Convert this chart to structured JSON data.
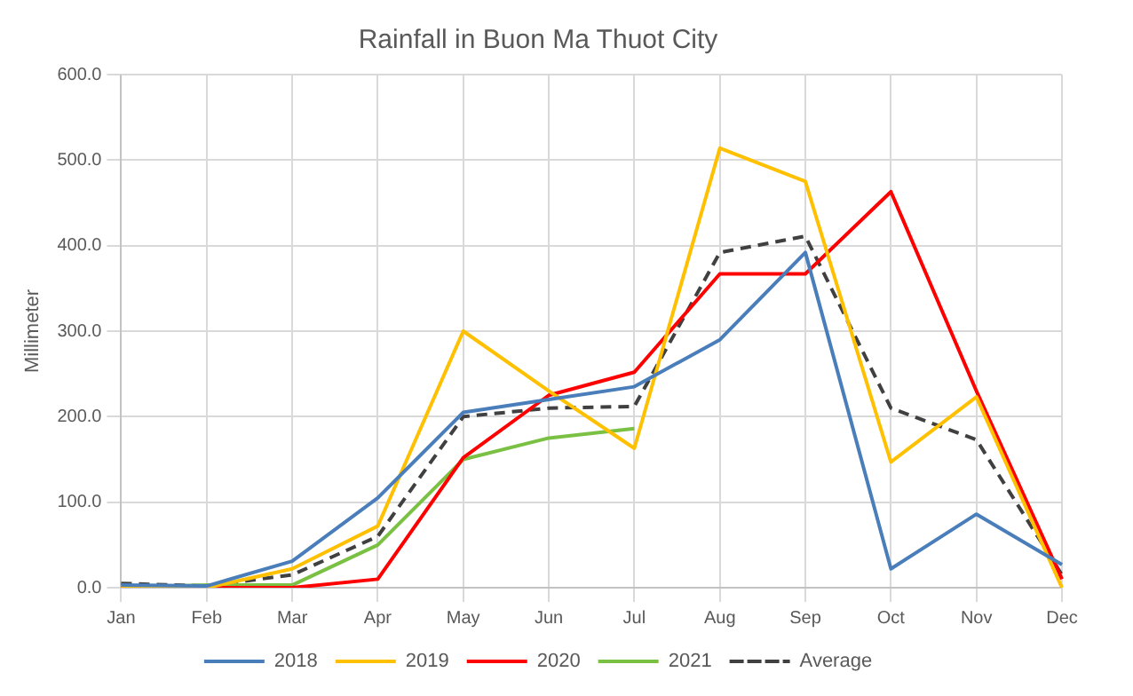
{
  "chart_data": {
    "type": "line",
    "title": "Rainfall in Buon Ma Thuot City",
    "ylabel": "Millimeter",
    "categories": [
      "Jan",
      "Feb",
      "Mar",
      "Apr",
      "May",
      "Jun",
      "Jul",
      "Aug",
      "Sep",
      "Oct",
      "Nov",
      "Dec"
    ],
    "series": [
      {
        "name": "2018",
        "color": "#4a7ebb",
        "values": [
          3,
          2,
          31,
          105,
          205,
          220,
          235,
          290,
          392,
          22,
          86,
          27
        ]
      },
      {
        "name": "2019",
        "color": "#ffc000",
        "values": [
          0,
          0,
          22,
          72,
          300,
          230,
          163,
          514,
          475,
          147,
          223,
          0
        ]
      },
      {
        "name": "2020",
        "color": "#ff0000",
        "values": [
          0,
          0,
          0,
          10,
          152,
          225,
          252,
          367,
          367,
          463,
          230,
          10
        ]
      },
      {
        "name": "2021",
        "color": "#7ac143",
        "values": [
          0,
          3,
          3,
          50,
          150,
          175,
          186,
          null,
          null,
          null,
          null,
          null
        ]
      },
      {
        "name": "Average",
        "color": "#404040",
        "line_style": "dashed",
        "values": [
          5,
          2,
          15,
          60,
          200,
          210,
          212,
          392,
          411,
          210,
          173,
          15
        ]
      }
    ],
    "ylim": [
      0,
      600
    ],
    "yticks": [
      {
        "value": 0,
        "label": "0.0"
      },
      {
        "value": 100,
        "label": "100.0"
      },
      {
        "value": 200,
        "label": "200.0"
      },
      {
        "value": 300,
        "label": "300.0"
      },
      {
        "value": 400,
        "label": "400.0"
      },
      {
        "value": 500,
        "label": "500.0"
      },
      {
        "value": 600,
        "label": "600.0"
      }
    ],
    "grid": true,
    "legend": "bottom",
    "marker": "none"
  }
}
